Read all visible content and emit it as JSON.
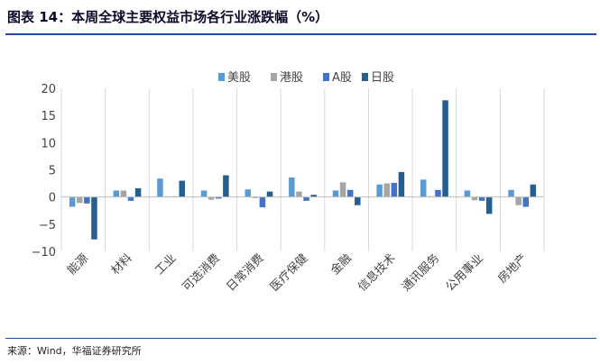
{
  "header": {
    "title": "图表 14：本周全球主要权益市场各行业涨跌幅（%）"
  },
  "footer": {
    "source": "来源：Wind，华福证券研究所"
  },
  "chart_data": {
    "type": "bar",
    "categories": [
      "能源",
      "材料",
      "工业",
      "可选消费",
      "日常消费",
      "医疗保健",
      "金融",
      "信息技术",
      "通讯服务",
      "公用事业",
      "房地产"
    ],
    "series": [
      {
        "name": "美股",
        "color": "#5b9bd5",
        "values": [
          -1.8,
          1.2,
          3.4,
          1.2,
          1.4,
          3.6,
          1.2,
          2.3,
          3.2,
          1.2,
          1.3
        ]
      },
      {
        "name": "港股",
        "color": "#a5a5a5",
        "values": [
          -1.1,
          1.2,
          0.1,
          -0.5,
          -0.2,
          1.0,
          2.7,
          2.5,
          0.0,
          -0.6,
          -1.5
        ]
      },
      {
        "name": "A股",
        "color": "#4472c4",
        "values": [
          -1.2,
          -0.7,
          0.1,
          -0.3,
          -1.9,
          -0.7,
          1.3,
          2.6,
          1.3,
          -0.7,
          -1.8
        ]
      },
      {
        "name": "日股",
        "color": "#255e91",
        "values": [
          -7.8,
          1.6,
          3.0,
          4.0,
          1.0,
          0.4,
          -1.5,
          4.6,
          17.8,
          -3.1,
          2.3
        ]
      }
    ],
    "ylim": [
      -10,
      20
    ],
    "yticks": [
      -10,
      -5,
      0,
      5,
      10,
      15,
      20
    ],
    "grid": false,
    "legend": "top-center"
  }
}
